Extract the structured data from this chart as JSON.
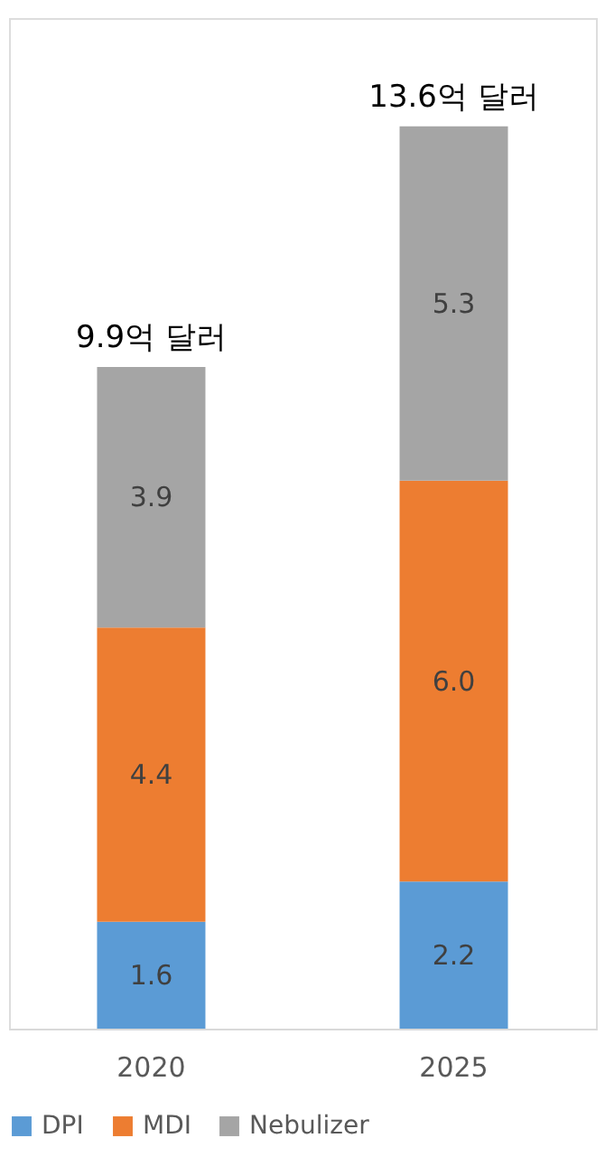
{
  "chart_data": {
    "type": "bar",
    "stacked": true,
    "categories": [
      "2020",
      "2025"
    ],
    "series": [
      {
        "name": "DPI",
        "color": "#5b9bd5",
        "values": [
          1.6,
          2.2
        ],
        "value_labels": [
          "1.6",
          "2.2"
        ]
      },
      {
        "name": "MDI",
        "color": "#ed7d31",
        "values": [
          4.4,
          6.0
        ],
        "value_labels": [
          "4.4",
          "6.0"
        ]
      },
      {
        "name": "Nebulizer",
        "color": "#a5a5a5",
        "values": [
          3.9,
          5.3
        ],
        "value_labels": [
          "3.9",
          "5.3"
        ]
      }
    ],
    "totals": [
      "9.9억 달러",
      "13.6억 달러"
    ],
    "legend": "bottom"
  }
}
